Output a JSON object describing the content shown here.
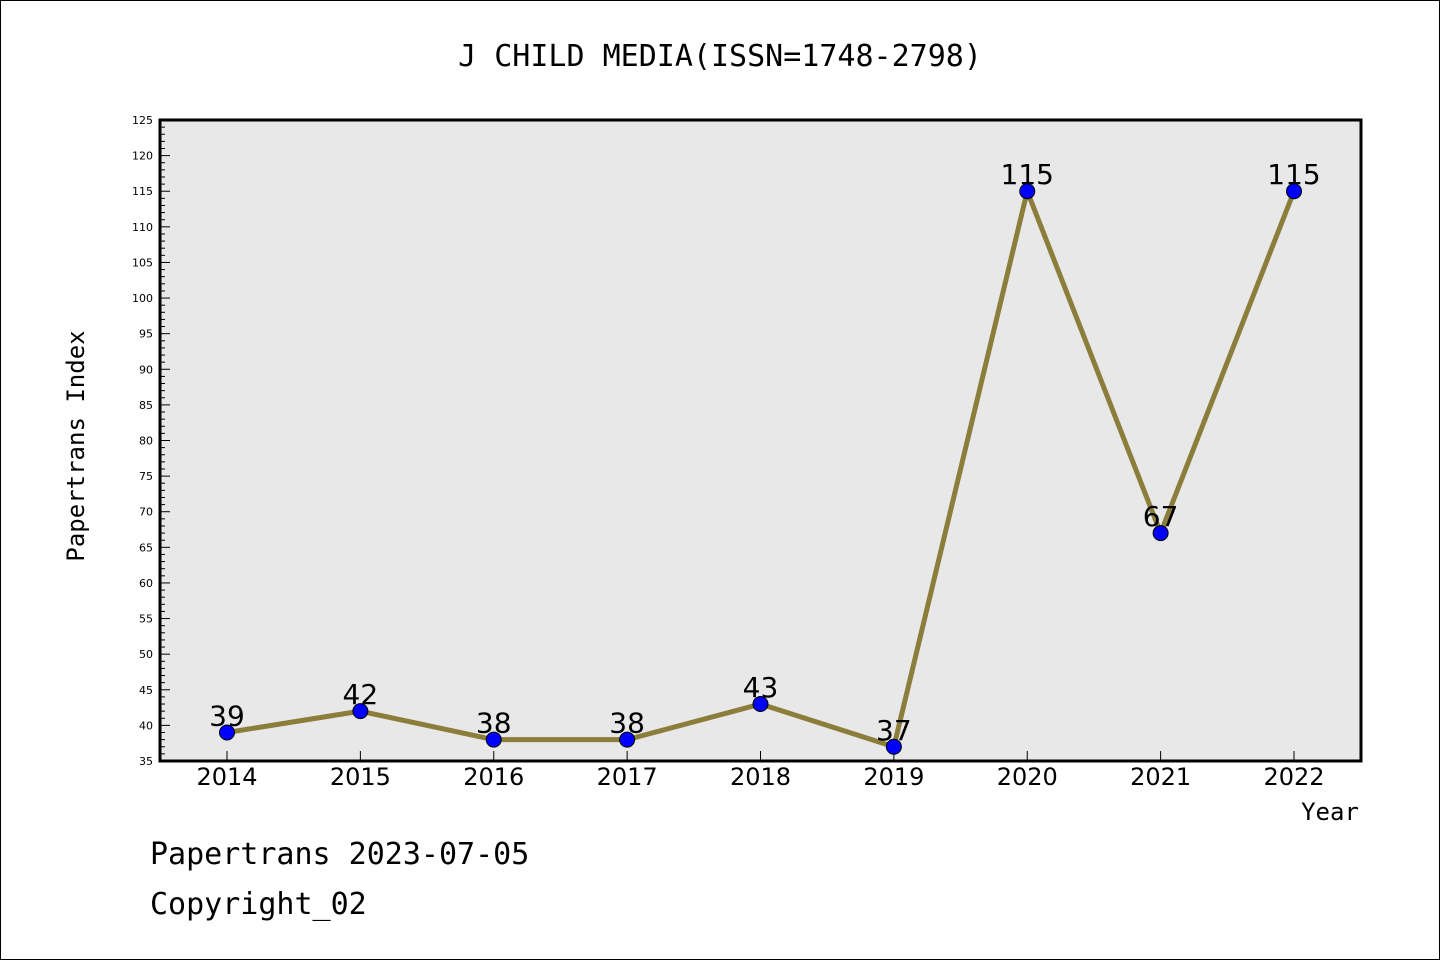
{
  "chart_data": {
    "type": "line",
    "title": "J CHILD MEDIA(ISSN=1748-2798)",
    "xlabel": "Year",
    "ylabel": "Papertrans Index",
    "x": [
      "2014",
      "2015",
      "2016",
      "2017",
      "2018",
      "2019",
      "2020",
      "2021",
      "2022"
    ],
    "series": [
      {
        "values": [
          39,
          42,
          38,
          38,
          43,
          37,
          115,
          67,
          115
        ]
      }
    ],
    "ylim": [
      35,
      125
    ],
    "yticks": [
      "35",
      "40",
      "45",
      "50",
      "55",
      "60",
      "65",
      "70",
      "75",
      "80",
      "85",
      "90",
      "95",
      "100",
      "105",
      "110",
      "115",
      "120",
      "125"
    ],
    "grid": false,
    "colors": {
      "line": "#8B7D3A",
      "marker": "#0000FF",
      "plot_bg": "#E8E8E8"
    }
  },
  "footer": {
    "line1": "Papertrans 2023-07-05",
    "line2": "Copyright_02"
  }
}
